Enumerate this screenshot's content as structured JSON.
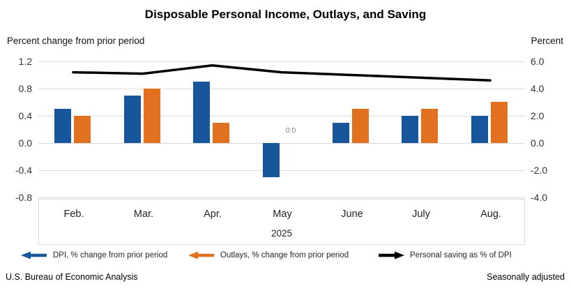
{
  "title": "Disposable Personal Income, Outlays, and Saving",
  "left_axis_caption": "Percent change from prior period",
  "right_axis_caption": "Percent",
  "year_label": "2025",
  "footer": {
    "source": "U.S. Bureau of Economic Analysis",
    "note": "Seasonally adjusted"
  },
  "colors": {
    "dpi_blue": "#17569b",
    "outlays_orange": "#e1701f",
    "saving_line_black": "#000000",
    "gridline": "#d9d9d9",
    "data_label_gray": "#7f7f7f"
  },
  "legend": [
    {
      "label": "DPI, % change from prior period",
      "marker": "left-arrow",
      "color": "#17569b"
    },
    {
      "label": "Outlays, % change from prior period",
      "marker": "left-arrow",
      "color": "#e1701f"
    },
    {
      "label": "Personal saving as % of DPI",
      "marker": "right-arrow",
      "color": "#000000"
    }
  ],
  "chart_data": {
    "type": "bar",
    "subtype": "grouped bars with secondary-axis line",
    "categories": [
      "Feb.",
      "Mar.",
      "Apr.",
      "May",
      "June",
      "July",
      "Aug."
    ],
    "series": [
      {
        "name": "DPI, % change from prior period",
        "type": "bar",
        "axis": "left",
        "color": "#17569b",
        "values": [
          0.5,
          0.7,
          0.9,
          -0.5,
          0.3,
          0.4,
          0.4
        ]
      },
      {
        "name": "Outlays, % change from prior period",
        "type": "bar",
        "axis": "left",
        "color": "#e1701f",
        "values": [
          0.4,
          0.8,
          0.3,
          0.0,
          0.5,
          0.5,
          0.6
        ]
      },
      {
        "name": "Personal saving as % of DPI",
        "type": "line",
        "axis": "right",
        "color": "#000000",
        "values": [
          5.2,
          5.1,
          5.7,
          5.2,
          5.0,
          4.8,
          4.6
        ]
      }
    ],
    "left_axis": {
      "label": "Percent change from prior period",
      "min": -0.8,
      "max": 1.2,
      "ticks": [
        "1.2",
        "0.8",
        "0.4",
        "0.0",
        "-0.4",
        "-0.8"
      ]
    },
    "right_axis": {
      "label": "Percent",
      "min": -4.0,
      "max": 6.0,
      "ticks": [
        "6.0",
        "4.0",
        "2.0",
        "0.0",
        "-2.0",
        "-4.0"
      ]
    },
    "data_labels": [
      {
        "series_index": 1,
        "category_index": 3,
        "text": "0.0"
      }
    ],
    "grid": true,
    "legend_position": "bottom",
    "title": "Disposable Personal Income, Outlays, and Saving"
  }
}
